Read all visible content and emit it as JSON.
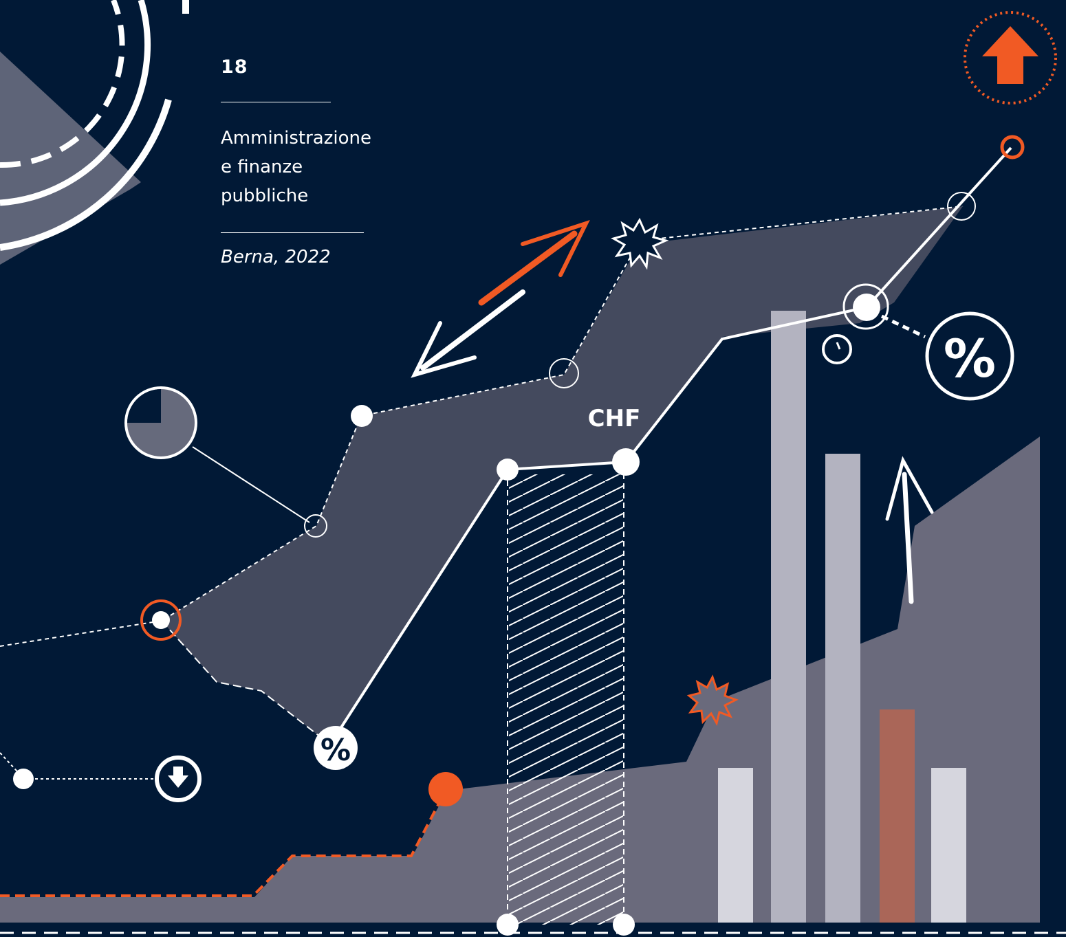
{
  "cover": {
    "chapter_number": "18",
    "chapter_title": "Amministrazione\ne finanze\npubbliche",
    "place_date": "Berna, 2022"
  },
  "graphic_labels": {
    "currency": "CHF",
    "percent_large": "%",
    "percent_small": "%"
  },
  "colors": {
    "background": "#011936",
    "accent_orange": "#f15a24",
    "band_gray": "#444a5e",
    "area_gray": "#6a6a7c",
    "bar_light": "#d6d6de",
    "bar_mid": "#b3b3c0",
    "bar_orange": "#aa6658",
    "white": "#ffffff"
  },
  "icons": {
    "top_right": "arrow-up-icon",
    "bottom_left": "arrow-down-icon",
    "pie": "pie-chart-icon"
  }
}
